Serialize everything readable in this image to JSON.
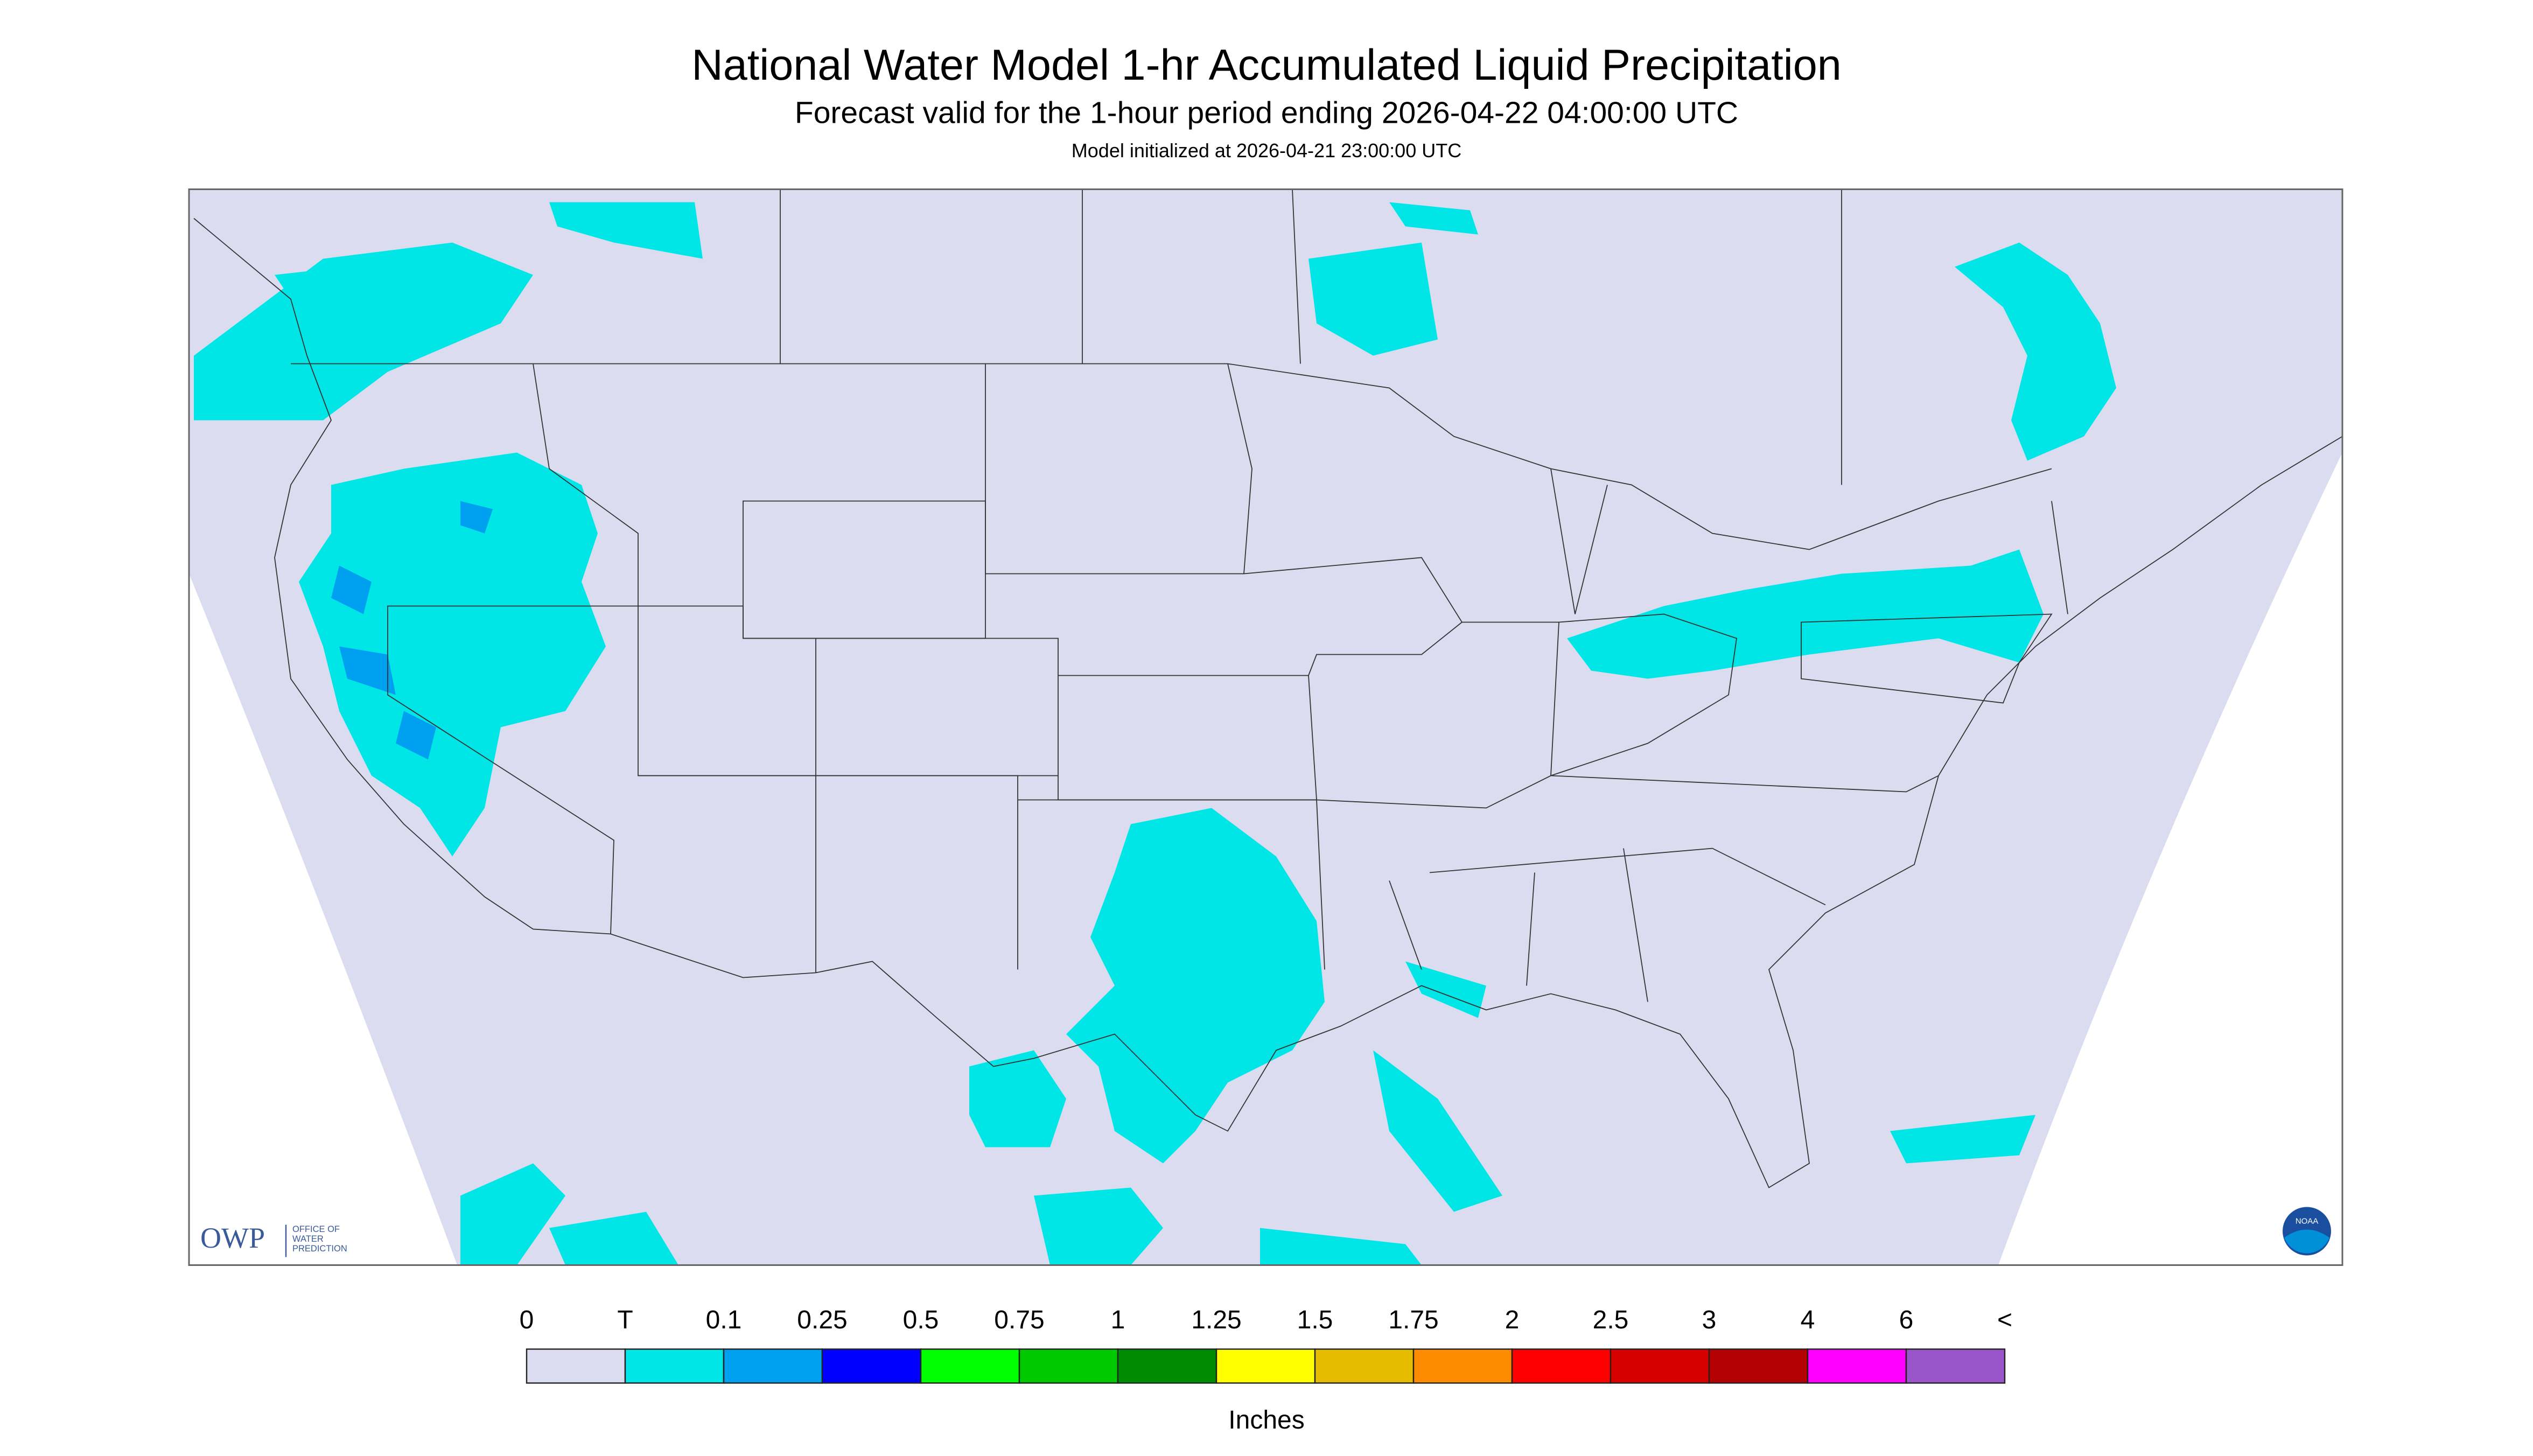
{
  "header": {
    "title": "National Water Model 1-hr Accumulated Liquid Precipitation",
    "subtitle": "Forecast valid for the 1-hour period ending 2026-04-22 04:00:00 UTC",
    "initialized": "Model initialized at 2026-04-21 23:00:00 UTC"
  },
  "legend": {
    "labels": [
      "0",
      "T",
      "0.1",
      "0.25",
      "0.5",
      "0.75",
      "1",
      "1.25",
      "1.5",
      "1.75",
      "2",
      "2.5",
      "3",
      "4",
      "6",
      "<"
    ],
    "colors": [
      "#dcdcf0",
      "#00e6e6",
      "#00a0f0",
      "#0000ff",
      "#00ff00",
      "#00c800",
      "#008c00",
      "#ffff00",
      "#e6bc00",
      "#ff8c00",
      "#ff0000",
      "#d60000",
      "#b40000",
      "#ff00ff",
      "#9955c9"
    ],
    "units": "Inches"
  },
  "logos": {
    "owp": "OWP",
    "owp_text": [
      "OFFICE OF",
      "WATER",
      "PREDICTION"
    ],
    "noaa": "NOAA"
  }
}
